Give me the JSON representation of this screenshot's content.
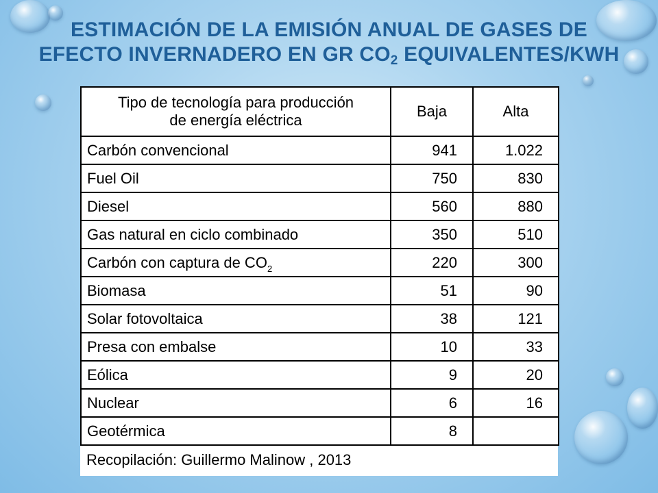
{
  "title": {
    "line1": "Estimación de la emisión anual de gases de",
    "line2_before": "efecto invernadero en Gr CO",
    "line2_sub": "2",
    "line2_after": " equivalentes/KWh"
  },
  "table": {
    "headers": {
      "tech_line1": "Tipo de tecnología para producción",
      "tech_line2": "de energía eléctrica",
      "low": "Baja",
      "high": "Alta"
    },
    "rows": [
      {
        "name": "Carbón convencional",
        "low": "941",
        "high": "1.022"
      },
      {
        "name": "Fuel Oil",
        "low": "750",
        "high": "830"
      },
      {
        "name": "Diesel",
        "low": "560",
        "high": "880"
      },
      {
        "name": "Gas natural en ciclo combinado",
        "low": "350",
        "high": "510"
      },
      {
        "name": "Carbón con captura de CO",
        "name_sub": "2",
        "low": "220",
        "high": "300"
      },
      {
        "name": "Biomasa",
        "low": "51",
        "high": "90"
      },
      {
        "name": "Solar fotovoltaica",
        "low": "38",
        "high": "121"
      },
      {
        "name": "Presa con embalse",
        "low": "10",
        "high": "33"
      },
      {
        "name": "Eólica",
        "low": "9",
        "high": "20"
      },
      {
        "name": "Nuclear",
        "low": "6",
        "high": "16"
      },
      {
        "name": "Geotérmica",
        "low": "8",
        "high": ""
      }
    ],
    "footer": "Recopilación: Guillermo Malinow , 2013"
  }
}
